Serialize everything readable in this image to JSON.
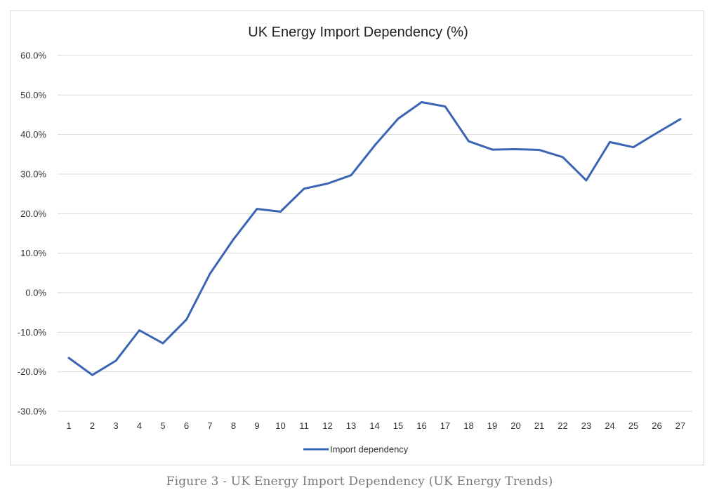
{
  "caption": "Figure 3 - UK Energy Import Dependency (UK Energy Trends)",
  "chart_data": {
    "type": "line",
    "title": "UK Energy Import Dependency (%)",
    "xlabel": "",
    "ylabel": "",
    "ylim": [
      -30,
      60
    ],
    "y_ticks": [
      -30,
      -20,
      -10,
      0,
      10,
      20,
      30,
      40,
      50,
      60
    ],
    "y_tick_labels": [
      "-30.0%",
      "-20.0%",
      "-10.0%",
      "0.0%",
      "10.0%",
      "20.0%",
      "30.0%",
      "40.0%",
      "50.0%",
      "60.0%"
    ],
    "categories": [
      "1",
      "2",
      "3",
      "4",
      "5",
      "6",
      "7",
      "8",
      "9",
      "10",
      "11",
      "12",
      "13",
      "14",
      "15",
      "16",
      "17",
      "18",
      "19",
      "20",
      "21",
      "22",
      "23",
      "24",
      "25",
      "26",
      "27"
    ],
    "grid": true,
    "legend_position": "bottom",
    "series": [
      {
        "name": "Import dependency",
        "color": "#3a64b4",
        "values": [
          -16.5,
          -20.8,
          -17.2,
          -9.5,
          -12.8,
          -6.8,
          4.8,
          13.5,
          21.2,
          20.5,
          26.3,
          27.6,
          29.7,
          37.2,
          44.0,
          48.2,
          47.1,
          38.3,
          36.2,
          36.3,
          36.1,
          34.3,
          28.4,
          38.1,
          36.8,
          40.4,
          43.9
        ]
      }
    ]
  }
}
